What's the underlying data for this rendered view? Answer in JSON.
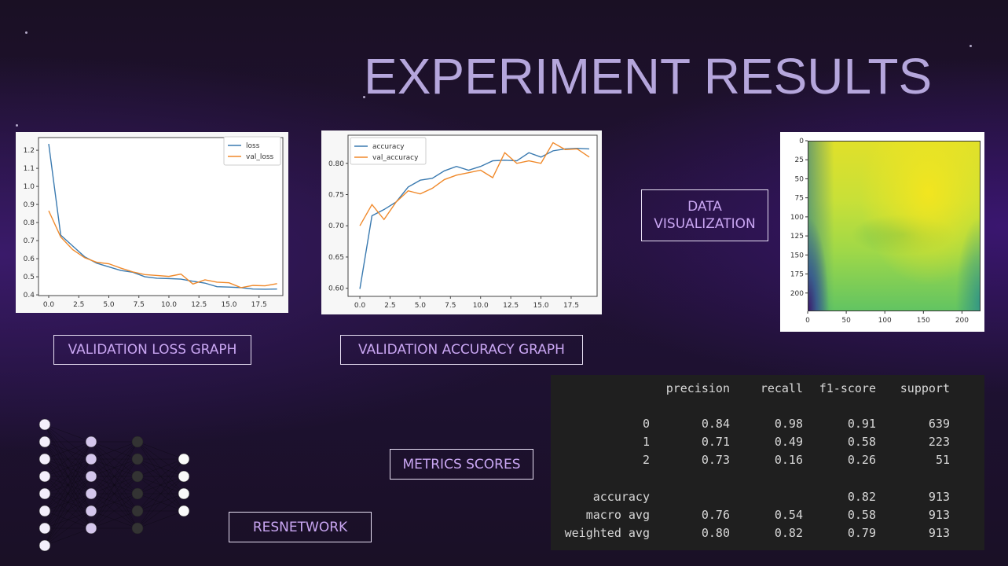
{
  "title": "EXPERIMENT RESULTS",
  "labels": {
    "loss": "VALIDATION LOSS GRAPH",
    "accuracy": "VALIDATION ACCURACY GRAPH",
    "data_vis": "DATA VISUALIZATION",
    "metrics": "METRICS SCORES",
    "resnet": "RESNETWORK"
  },
  "colors": {
    "series1": "#3a7ab0",
    "series2": "#f0892a",
    "label_text": "#c9a6f2",
    "title": "#b5a6dc"
  },
  "chart_data": [
    {
      "type": "line",
      "title": "",
      "xlabel": "",
      "ylabel": "",
      "xlim": [
        -0.85,
        19.48
      ],
      "ylim": [
        0.396,
        1.27
      ],
      "xticks": [
        "0.0",
        "2.5",
        "5.0",
        "7.5",
        "10.0",
        "12.5",
        "15.0",
        "17.5"
      ],
      "xtick_values": [
        0,
        2.5,
        5,
        7.5,
        10,
        12.5,
        15,
        17.5
      ],
      "yticks": [
        "0.4",
        "0.5",
        "0.6",
        "0.7",
        "0.8",
        "0.9",
        "1.0",
        "1.1",
        "1.2"
      ],
      "ytick_values": [
        0.4,
        0.5,
        0.6,
        0.7,
        0.8,
        0.9,
        1.0,
        1.1,
        1.2
      ],
      "legend": "top-right",
      "x": [
        0,
        1,
        2,
        3,
        4,
        5,
        6,
        7,
        8,
        9,
        10,
        11,
        12,
        13,
        14,
        15,
        16,
        17,
        18,
        19
      ],
      "series": [
        {
          "name": "loss",
          "values": [
            1.235,
            0.73,
            0.67,
            0.61,
            0.575,
            0.555,
            0.535,
            0.525,
            0.5,
            0.492,
            0.49,
            0.487,
            0.475,
            0.465,
            0.445,
            0.443,
            0.44,
            0.432,
            0.431,
            0.432
          ]
        },
        {
          "name": "val_loss",
          "values": [
            0.865,
            0.72,
            0.65,
            0.605,
            0.58,
            0.572,
            0.548,
            0.527,
            0.512,
            0.507,
            0.502,
            0.515,
            0.46,
            0.483,
            0.47,
            0.467,
            0.44,
            0.452,
            0.45,
            0.462
          ]
        }
      ]
    },
    {
      "type": "line",
      "title": "",
      "xlabel": "",
      "ylabel": "",
      "xlim": [
        -0.98,
        19.65
      ],
      "ylim": [
        0.587,
        0.845
      ],
      "xticks": [
        "0.0",
        "2.5",
        "5.0",
        "7.5",
        "10.0",
        "12.5",
        "15.0",
        "17.5"
      ],
      "xtick_values": [
        0,
        2.5,
        5,
        7.5,
        10,
        12.5,
        15,
        17.5
      ],
      "yticks": [
        "0.60",
        "0.65",
        "0.70",
        "0.75",
        "0.80"
      ],
      "ytick_values": [
        0.6,
        0.65,
        0.7,
        0.75,
        0.8
      ],
      "legend": "top-left",
      "x": [
        0,
        1,
        2,
        3,
        4,
        5,
        6,
        7,
        8,
        9,
        10,
        11,
        12,
        13,
        14,
        15,
        16,
        17,
        18,
        19
      ],
      "series": [
        {
          "name": "accuracy",
          "values": [
            0.599,
            0.716,
            0.726,
            0.738,
            0.762,
            0.773,
            0.776,
            0.788,
            0.795,
            0.789,
            0.795,
            0.804,
            0.805,
            0.804,
            0.817,
            0.81,
            0.82,
            0.823,
            0.824,
            0.823
          ]
        },
        {
          "name": "val_accuracy",
          "values": [
            0.7,
            0.734,
            0.71,
            0.738,
            0.756,
            0.751,
            0.76,
            0.774,
            0.781,
            0.785,
            0.789,
            0.777,
            0.817,
            0.8,
            0.804,
            0.8,
            0.833,
            0.822,
            0.823,
            0.81
          ]
        }
      ]
    },
    {
      "type": "heatmap",
      "xticks": [
        "0",
        "50",
        "100",
        "150",
        "200"
      ],
      "yticks": [
        "0",
        "25",
        "50",
        "75",
        "100",
        "125",
        "150",
        "175",
        "200"
      ],
      "xlim": [
        0,
        224
      ],
      "ylim": [
        224,
        0
      ]
    }
  ],
  "metrics": {
    "headers": [
      "",
      "precision",
      "recall",
      "f1-score",
      "support"
    ],
    "rows": [
      [
        "0",
        "0.84",
        "0.98",
        "0.91",
        "639"
      ],
      [
        "1",
        "0.71",
        "0.49",
        "0.58",
        "223"
      ],
      [
        "2",
        "0.73",
        "0.16",
        "0.26",
        "51"
      ]
    ],
    "summary": [
      [
        "accuracy",
        "",
        "",
        "0.82",
        "913"
      ],
      [
        "macro avg",
        "0.76",
        "0.54",
        "0.58",
        "913"
      ],
      [
        "weighted avg",
        "0.80",
        "0.82",
        "0.79",
        "913"
      ]
    ]
  }
}
